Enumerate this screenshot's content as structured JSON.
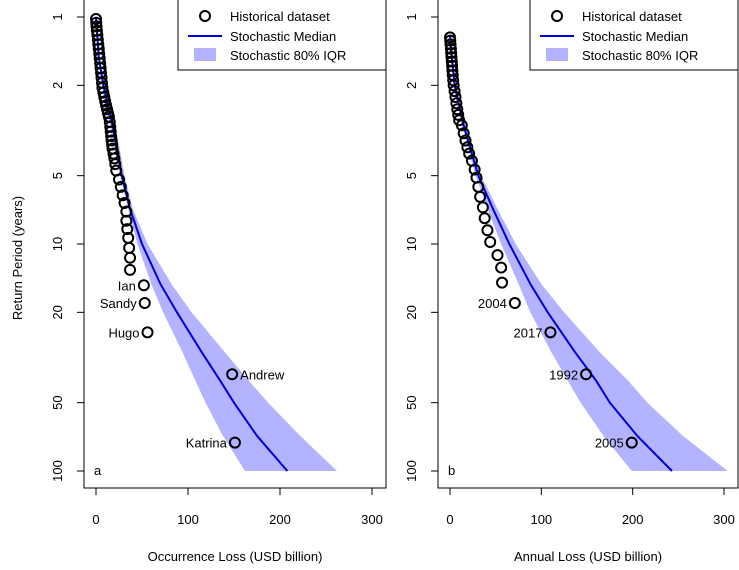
{
  "ylabel": "Return Period (years)",
  "legend": {
    "historical": "Historical dataset",
    "median": "Stochastic Median",
    "iqr": "Stochastic 80% IQR"
  },
  "colors": {
    "median": "#0000dd",
    "band": "#b3b3ff",
    "points": "#000000"
  },
  "chart_data": [
    {
      "type": "scatter",
      "panel_tag": "a",
      "xlabel": "Occurrence Loss (USD billion)",
      "ylabel": "Return Period (years)",
      "xlim": [
        0,
        300
      ],
      "ylim": [
        1,
        100
      ],
      "log_y": true,
      "reversed_y": true,
      "x_ticks": [
        0,
        100,
        200,
        300
      ],
      "y_ticks": [
        1,
        2,
        5,
        10,
        20,
        50,
        100
      ],
      "legend_position": "top-right",
      "grid": false,
      "historical_points": [
        {
          "x": 0,
          "rp": 1.02
        },
        {
          "x": 0.3,
          "rp": 1.06
        },
        {
          "x": 0.6,
          "rp": 1.1
        },
        {
          "x": 1,
          "rp": 1.15
        },
        {
          "x": 1.5,
          "rp": 1.2
        },
        {
          "x": 2,
          "rp": 1.26
        },
        {
          "x": 2.5,
          "rp": 1.32
        },
        {
          "x": 3,
          "rp": 1.38
        },
        {
          "x": 3.5,
          "rp": 1.45
        },
        {
          "x": 4,
          "rp": 1.52
        },
        {
          "x": 4.5,
          "rp": 1.6
        },
        {
          "x": 5,
          "rp": 1.68
        },
        {
          "x": 5.5,
          "rp": 1.76
        },
        {
          "x": 6,
          "rp": 1.85
        },
        {
          "x": 6.5,
          "rp": 1.95
        },
        {
          "x": 7,
          "rp": 2.05
        },
        {
          "x": 8,
          "rp": 2.15
        },
        {
          "x": 9,
          "rp": 2.25
        },
        {
          "x": 10,
          "rp": 2.35
        },
        {
          "x": 11,
          "rp": 2.45
        },
        {
          "x": 12,
          "rp": 2.55
        },
        {
          "x": 13,
          "rp": 2.65
        },
        {
          "x": 14,
          "rp": 2.75
        },
        {
          "x": 15,
          "rp": 2.9
        },
        {
          "x": 15.5,
          "rp": 3.05
        },
        {
          "x": 16,
          "rp": 3.2
        },
        {
          "x": 16.5,
          "rp": 3.35
        },
        {
          "x": 17,
          "rp": 3.5
        },
        {
          "x": 17.5,
          "rp": 3.65
        },
        {
          "x": 18,
          "rp": 3.8
        },
        {
          "x": 19,
          "rp": 4.0
        },
        {
          "x": 20,
          "rp": 4.2
        },
        {
          "x": 21,
          "rp": 4.45
        },
        {
          "x": 22,
          "rp": 4.75
        },
        {
          "x": 25,
          "rp": 5.2
        },
        {
          "x": 27,
          "rp": 5.6
        },
        {
          "x": 29,
          "rp": 6.1
        },
        {
          "x": 31,
          "rp": 6.6
        },
        {
          "x": 33,
          "rp": 7.2
        },
        {
          "x": 33,
          "rp": 7.9
        },
        {
          "x": 34,
          "rp": 8.6
        },
        {
          "x": 35,
          "rp": 9.4
        },
        {
          "x": 36,
          "rp": 10.4
        },
        {
          "x": 37,
          "rp": 11.5
        },
        {
          "x": 37,
          "rp": 13.0
        },
        {
          "x": 52,
          "rp": 15.2
        },
        {
          "x": 53,
          "rp": 18.2
        },
        {
          "x": 56,
          "rp": 24.5
        },
        {
          "x": 148,
          "rp": 37.5
        },
        {
          "x": 151,
          "rp": 75
        }
      ],
      "labeled_events": [
        {
          "name": "Ian",
          "x": 52,
          "rp": 15.2,
          "side": "left"
        },
        {
          "name": "Sandy",
          "x": 53,
          "rp": 18.2,
          "side": "left"
        },
        {
          "name": "Hugo",
          "x": 56,
          "rp": 24.5,
          "side": "left"
        },
        {
          "name": "Andrew",
          "x": 148,
          "rp": 37.5,
          "side": "right"
        },
        {
          "name": "Katrina",
          "x": 151,
          "rp": 75,
          "side": "left"
        }
      ],
      "median": {
        "rp": [
          1,
          1.5,
          2,
          3,
          5,
          7,
          10,
          15,
          20,
          30,
          40,
          50,
          70,
          100
        ],
        "x": [
          0,
          3,
          8,
          18,
          28,
          37,
          50,
          70,
          88,
          115,
          135,
          150,
          175,
          208
        ]
      },
      "band": {
        "rp": [
          1,
          1.5,
          2,
          3,
          5,
          7,
          10,
          15,
          20,
          30,
          40,
          50,
          70,
          100
        ],
        "low": [
          0,
          2,
          6,
          15,
          26,
          35,
          45,
          60,
          73,
          94,
          108,
          119,
          138,
          162
        ],
        "high": [
          0,
          4,
          10,
          21,
          31,
          40,
          56,
          82,
          104,
          140,
          166,
          187,
          222,
          262
        ]
      }
    },
    {
      "type": "scatter",
      "panel_tag": "b",
      "xlabel": "Annual Loss (USD billion)",
      "ylabel": "Return Period (years)",
      "xlim": [
        0,
        300
      ],
      "ylim": [
        1,
        100
      ],
      "log_y": true,
      "reversed_y": true,
      "x_ticks": [
        0,
        100,
        200,
        300
      ],
      "y_ticks": [
        1,
        2,
        5,
        10,
        20,
        50,
        100
      ],
      "legend_position": "top-right",
      "grid": false,
      "historical_points": [
        {
          "x": 0,
          "rp": 1.23
        },
        {
          "x": 0.3,
          "rp": 1.27
        },
        {
          "x": 0.6,
          "rp": 1.32
        },
        {
          "x": 1,
          "rp": 1.38
        },
        {
          "x": 1.3,
          "rp": 1.44
        },
        {
          "x": 1.6,
          "rp": 1.5
        },
        {
          "x": 2,
          "rp": 1.57
        },
        {
          "x": 2.3,
          "rp": 1.64
        },
        {
          "x": 2.6,
          "rp": 1.72
        },
        {
          "x": 3,
          "rp": 1.8
        },
        {
          "x": 3.5,
          "rp": 1.9
        },
        {
          "x": 4,
          "rp": 2.0
        },
        {
          "x": 5,
          "rp": 2.12
        },
        {
          "x": 6,
          "rp": 2.25
        },
        {
          "x": 7,
          "rp": 2.4
        },
        {
          "x": 8,
          "rp": 2.55
        },
        {
          "x": 9,
          "rp": 2.7
        },
        {
          "x": 10,
          "rp": 2.85
        },
        {
          "x": 13,
          "rp": 3.0
        },
        {
          "x": 15,
          "rp": 3.25
        },
        {
          "x": 17,
          "rp": 3.5
        },
        {
          "x": 19,
          "rp": 3.75
        },
        {
          "x": 21,
          "rp": 4.0
        },
        {
          "x": 24,
          "rp": 4.3
        },
        {
          "x": 27,
          "rp": 4.7
        },
        {
          "x": 29,
          "rp": 5.1
        },
        {
          "x": 31,
          "rp": 5.6
        },
        {
          "x": 33,
          "rp": 6.2
        },
        {
          "x": 36,
          "rp": 6.9
        },
        {
          "x": 38,
          "rp": 7.7
        },
        {
          "x": 41,
          "rp": 8.7
        },
        {
          "x": 44,
          "rp": 9.8
        },
        {
          "x": 52,
          "rp": 11.2
        },
        {
          "x": 56,
          "rp": 12.7
        },
        {
          "x": 57,
          "rp": 14.8
        },
        {
          "x": 71,
          "rp": 18.2
        },
        {
          "x": 110,
          "rp": 24.5
        },
        {
          "x": 149,
          "rp": 37.5
        },
        {
          "x": 199,
          "rp": 75
        }
      ],
      "labeled_events": [
        {
          "name": "2004",
          "x": 71,
          "rp": 18.2,
          "side": "left"
        },
        {
          "name": "2017",
          "x": 110,
          "rp": 24.5,
          "side": "left"
        },
        {
          "name": "1992",
          "x": 149,
          "rp": 37.5,
          "side": "left"
        },
        {
          "name": "2005",
          "x": 199,
          "rp": 75,
          "side": "left"
        }
      ],
      "median": {
        "rp": [
          1.2,
          1.5,
          2,
          3,
          5,
          7,
          10,
          15,
          20,
          30,
          40,
          50,
          70,
          100
        ],
        "x": [
          0,
          2,
          5,
          15,
          31,
          47,
          65,
          88,
          107,
          137,
          160,
          175,
          205,
          243
        ]
      },
      "band": {
        "rp": [
          1.2,
          1.5,
          2,
          3,
          5,
          7,
          10,
          15,
          20,
          30,
          40,
          50,
          70,
          100
        ],
        "low": [
          0,
          1,
          4,
          13,
          28,
          41,
          56,
          75,
          88,
          111,
          129,
          143,
          168,
          199
        ],
        "high": [
          0,
          3,
          7,
          18,
          34,
          52,
          72,
          100,
          125,
          164,
          195,
          216,
          255,
          304
        ]
      }
    }
  ]
}
